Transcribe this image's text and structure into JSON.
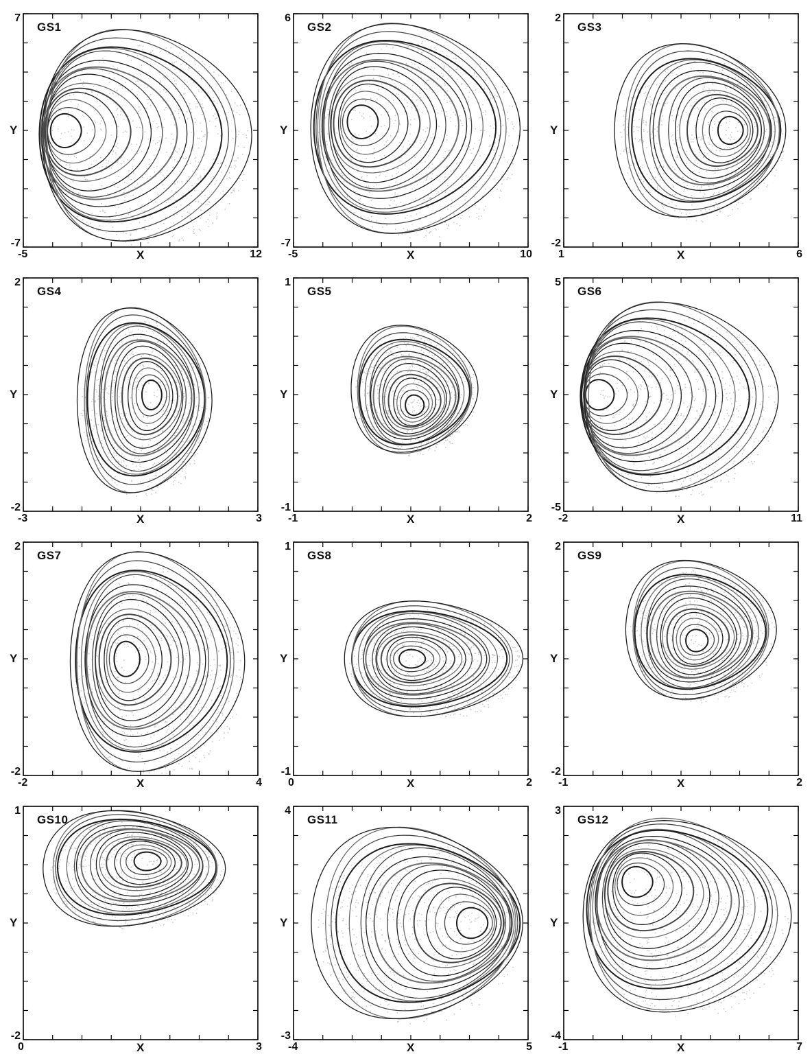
{
  "chart_data": [
    {
      "type": "line",
      "title": "GS1",
      "xlabel": "X",
      "ylabel": "Y",
      "xlim": [
        -5,
        12
      ],
      "ylim": [
        -7,
        7
      ],
      "x_tick_labels": [
        "-5",
        "12"
      ],
      "y_tick_labels": [
        "-7",
        "7"
      ],
      "shape": {
        "cx": 3.5,
        "cy": -0.3,
        "rx": 7.5,
        "ry": 6.4,
        "fx": -2.3,
        "fy": 0.0
      }
    },
    {
      "type": "line",
      "title": "GS2",
      "xlabel": "X",
      "ylabel": "Y",
      "xlim": [
        -5,
        10
      ],
      "ylim": [
        -7,
        6
      ],
      "x_tick_labels": [
        "-5",
        "10"
      ],
      "y_tick_labels": [
        "-7",
        "6"
      ],
      "shape": {
        "cx": 2.4,
        "cy": -0.4,
        "rx": 6.6,
        "ry": 5.9,
        "fx": -0.8,
        "fy": 0.0
      }
    },
    {
      "type": "line",
      "title": "GS3",
      "xlabel": "X",
      "ylabel": "Y",
      "xlim": [
        1,
        6
      ],
      "ylim": [
        -2,
        2
      ],
      "x_tick_labels": [
        "1",
        "6"
      ],
      "y_tick_labels": [
        "-2",
        "2"
      ],
      "shape": {
        "cx": 3.8,
        "cy": 0.0,
        "rx": 1.8,
        "ry": 1.5,
        "fx": 4.6,
        "fy": 0.0
      }
    },
    {
      "type": "line",
      "title": "GS4",
      "xlabel": "X",
      "ylabel": "Y",
      "xlim": [
        -3,
        3
      ],
      "ylim": [
        -2,
        2
      ],
      "x_tick_labels": [
        "-3",
        "3"
      ],
      "y_tick_labels": [
        "-2",
        "2"
      ],
      "shape": {
        "cx": 0.0,
        "cy": -0.1,
        "rx": 1.7,
        "ry": 1.6,
        "fx": 0.3,
        "fy": 0.0
      }
    },
    {
      "type": "line",
      "title": "GS5",
      "xlabel": "X",
      "ylabel": "Y",
      "xlim": [
        -1,
        2
      ],
      "ylim": [
        -1,
        1
      ],
      "x_tick_labels": [
        "-1",
        "2"
      ],
      "y_tick_labels": [
        "-1",
        "1"
      ],
      "shape": {
        "cx": 0.5,
        "cy": 0.05,
        "rx": 0.8,
        "ry": 0.55,
        "fx": 0.55,
        "fy": -0.1
      }
    },
    {
      "type": "line",
      "title": "GS6",
      "xlabel": "X",
      "ylabel": "Y",
      "xlim": [
        -2,
        11
      ],
      "ylim": [
        -5,
        5
      ],
      "x_tick_labels": [
        "-2",
        "11"
      ],
      "y_tick_labels": [
        "-5",
        "5"
      ],
      "shape": {
        "cx": 4.2,
        "cy": -0.1,
        "rx": 5.3,
        "ry": 4.1,
        "fx": -0.3,
        "fy": 0.0
      }
    },
    {
      "type": "line",
      "title": "GS7",
      "xlabel": "X",
      "ylabel": "Y",
      "xlim": [
        -2,
        4
      ],
      "ylim": [
        -2,
        2
      ],
      "x_tick_labels": [
        "-2",
        "4"
      ],
      "y_tick_labels": [
        "-2",
        "2"
      ],
      "shape": {
        "cx": 1.3,
        "cy": -0.05,
        "rx": 2.2,
        "ry": 1.9,
        "fx": 0.6,
        "fy": 0.0
      }
    },
    {
      "type": "line",
      "title": "GS8",
      "xlabel": "X",
      "ylabel": "Y",
      "xlim": [
        0,
        2
      ],
      "ylim": [
        -1,
        1
      ],
      "x_tick_labels": [
        "0",
        "2"
      ],
      "y_tick_labels": [
        "-1",
        "1"
      ],
      "shape": {
        "cx": 1.15,
        "cy": 0.0,
        "rx": 0.75,
        "ry": 0.5,
        "fx": 1.0,
        "fy": 0.0
      }
    },
    {
      "type": "line",
      "title": "GS9",
      "xlabel": "X",
      "ylabel": "Y",
      "xlim": [
        -1,
        2
      ],
      "ylim": [
        -2,
        2
      ],
      "x_tick_labels": [
        "-1",
        "2"
      ],
      "y_tick_labels": [
        "-2",
        "2"
      ],
      "shape": {
        "cx": 0.7,
        "cy": 0.5,
        "rx": 0.95,
        "ry": 1.2,
        "fx": 0.7,
        "fy": 0.3
      }
    },
    {
      "type": "line",
      "title": "GS10",
      "xlabel": "X",
      "ylabel": "Y",
      "xlim": [
        0,
        3
      ],
      "ylim": [
        -2,
        1
      ],
      "x_tick_labels": [
        "0",
        "3"
      ],
      "y_tick_labels": [
        "-2",
        "1"
      ],
      "shape": {
        "cx": 1.35,
        "cy": 0.2,
        "rx": 1.15,
        "ry": 0.75,
        "fx": 1.6,
        "fy": 0.3
      }
    },
    {
      "type": "line",
      "title": "GS11",
      "xlabel": "X",
      "ylabel": "Y",
      "xlim": [
        -4,
        5
      ],
      "ylim": [
        -3,
        4
      ],
      "x_tick_labels": [
        "-4",
        "5"
      ],
      "y_tick_labels": [
        "-3",
        "4"
      ],
      "shape": {
        "cx": 0.5,
        "cy": 0.5,
        "rx": 4.0,
        "ry": 2.9,
        "fx": 3.0,
        "fy": 0.5
      }
    },
    {
      "type": "line",
      "title": "GS12",
      "xlabel": "X",
      "ylabel": "Y",
      "xlim": [
        -1,
        7
      ],
      "ylim": [
        -4,
        3
      ],
      "x_tick_labels": [
        "-1",
        "7"
      ],
      "y_tick_labels": [
        "-4",
        "3"
      ],
      "shape": {
        "cx": 3.0,
        "cy": -0.3,
        "rx": 3.5,
        "ry": 2.9,
        "fx": 1.4,
        "fy": 0.8
      }
    }
  ]
}
